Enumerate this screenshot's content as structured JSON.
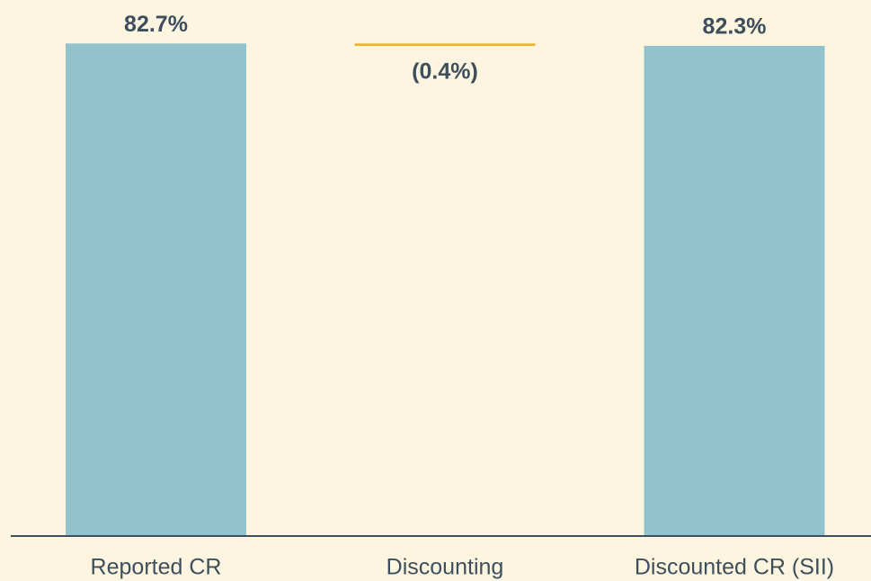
{
  "chart_data": {
    "type": "waterfall",
    "categories": [
      "Reported CR",
      "Discounting",
      "Discounted CR (SII)"
    ],
    "values": [
      82.7,
      -0.4,
      82.3
    ],
    "value_labels": [
      "82.7%",
      "(0.4%)",
      "82.3%"
    ],
    "measure": [
      "absolute",
      "relative",
      "total"
    ],
    "colors": [
      "#93c1cc",
      "#f0b323",
      "#93c1cc"
    ],
    "ylim": [
      0,
      90
    ]
  }
}
